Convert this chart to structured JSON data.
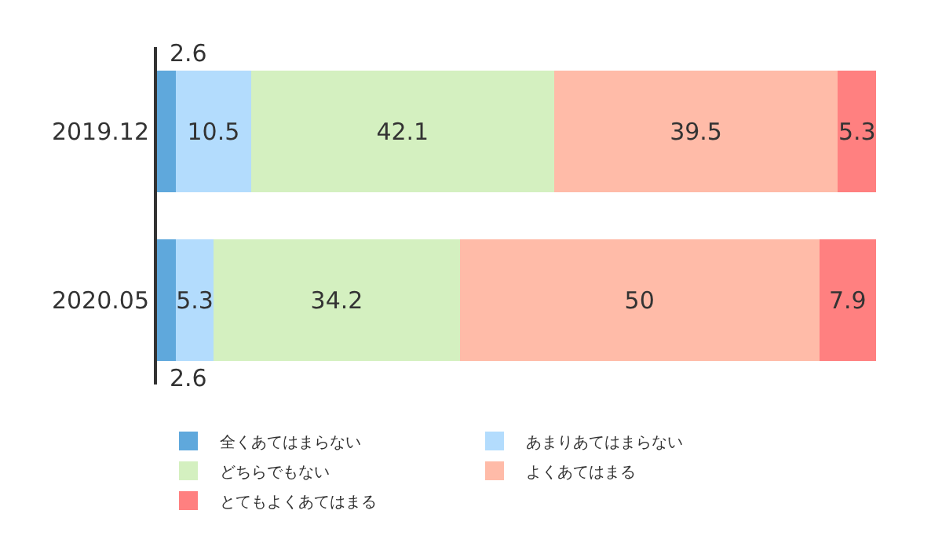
{
  "chart_data": {
    "type": "bar",
    "orientation": "horizontal",
    "stacked": true,
    "data_labels": true,
    "legend": "bottom",
    "tick_labels": "y",
    "categories": [
      "2019.12",
      "2020.05"
    ],
    "series": [
      {
        "name": "全くあてはまらない",
        "color": "#5fa8dc",
        "values": [
          2.6,
          2.6
        ]
      },
      {
        "name": "あまりあてはまらない",
        "color": "#b3dcfd",
        "values": [
          10.5,
          5.3
        ]
      },
      {
        "name": "どちらでもない",
        "color": "#d4f0c0",
        "values": [
          42.1,
          34.2
        ]
      },
      {
        "name": "よくあてはまる",
        "color": "#ffbba8",
        "values": [
          39.5,
          50
        ]
      },
      {
        "name": "とてもよくあてはまる",
        "color": "#ff8080",
        "values": [
          5.3,
          7.9
        ]
      }
    ]
  }
}
